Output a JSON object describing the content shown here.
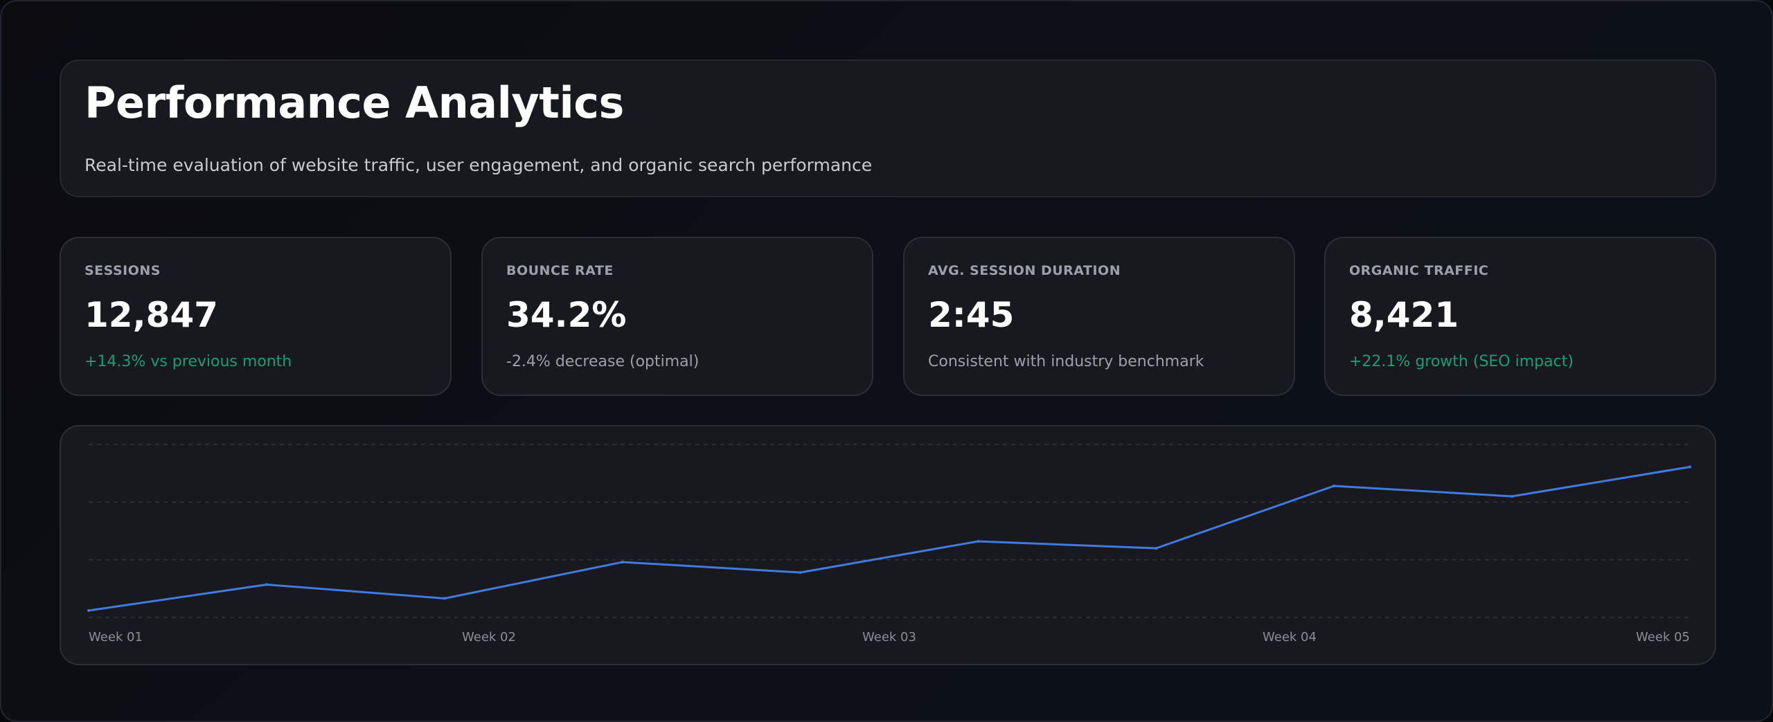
{
  "header": {
    "title": "Performance Analytics",
    "subtitle": "Real-time evaluation of website traffic, user engagement, and organic search performance"
  },
  "metrics": [
    {
      "label": "SESSIONS",
      "value": "12,847",
      "note": "+14.3% vs previous month",
      "note_color": "#1e9d72"
    },
    {
      "label": "BOUNCE RATE",
      "value": "34.2%",
      "note": "-2.4% decrease (optimal)",
      "note_color": "#9ca0a9"
    },
    {
      "label": "AVG. SESSION DURATION",
      "value": "2:45",
      "note": "Consistent with industry benchmark",
      "note_color": "#9ca0a9"
    },
    {
      "label": "ORGANIC TRAFFIC",
      "value": "8,421",
      "note": "+22.1% growth (SEO impact)",
      "note_color": "#1e9d72"
    }
  ],
  "chart_data": {
    "type": "line",
    "x": [
      1,
      1.5,
      2,
      2.5,
      3,
      3.5,
      4,
      4.5,
      5,
      5.5
    ],
    "xtick_labels": [
      "Week 01",
      "Week 02",
      "Week 03",
      "Week 04",
      "Week 05"
    ],
    "xtick_positions": [
      1,
      2,
      3,
      4,
      5
    ],
    "series": [
      {
        "values": [
          4,
          19,
          11,
          32,
          26,
          44,
          40,
          76,
          70,
          87
        ],
        "color": "#3f7be0"
      }
    ],
    "ylim": [
      0,
      100
    ],
    "grid": true,
    "legend": "none"
  },
  "colors": {
    "accent_line": "#3f7be0",
    "positive": "#1e9d72",
    "card_bg": "#17191f"
  }
}
